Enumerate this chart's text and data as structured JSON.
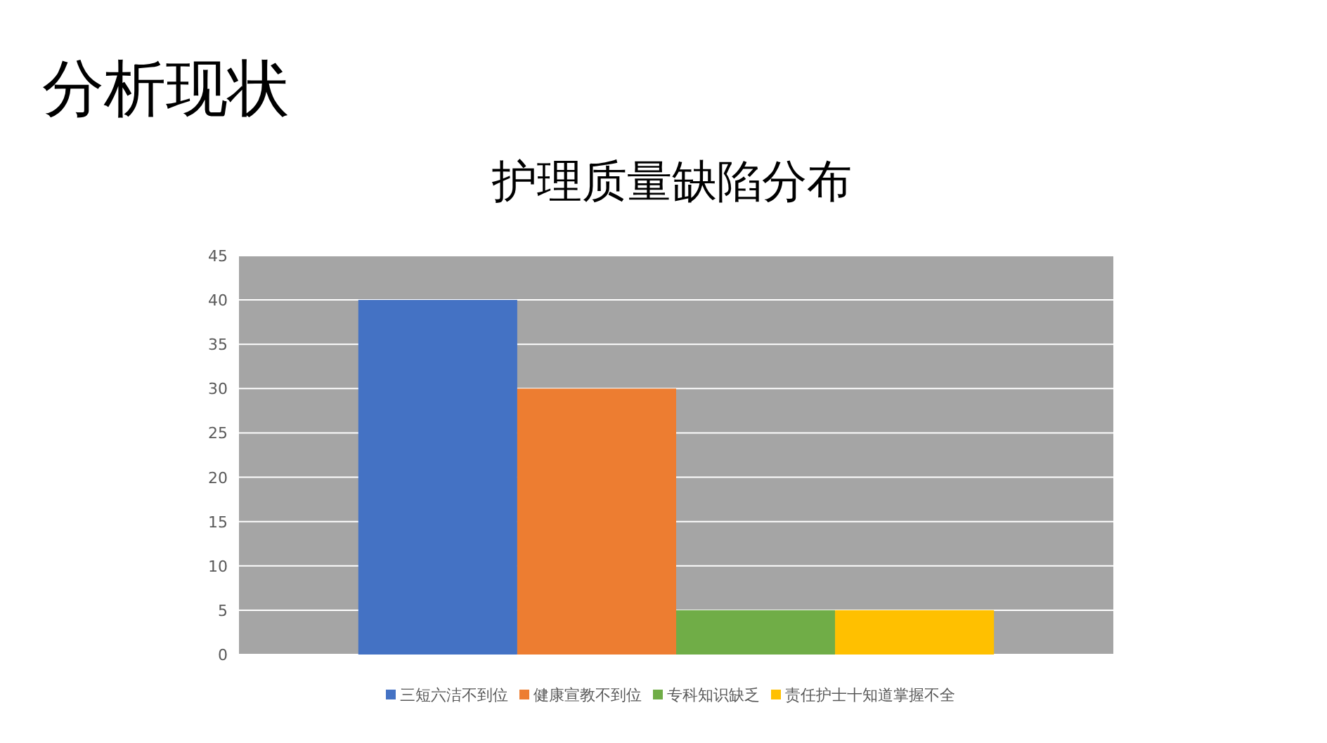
{
  "chart_data": {
    "type": "bar",
    "title": "分析现状",
    "subtitle": "护理质量缺陷分布",
    "categories": [
      null
    ],
    "series": [
      {
        "name": "三短六洁不到位",
        "color": "#4472c4",
        "values": [
          40
        ]
      },
      {
        "name": "健康宣教不到位",
        "color": "#ed7d31",
        "values": [
          30
        ]
      },
      {
        "name": "专科知识缺乏",
        "color": "#70ad47",
        "values": [
          5
        ]
      },
      {
        "name": "责任护士十知道掌握不全",
        "color": "#ffc000",
        "values": [
          5
        ]
      }
    ],
    "ylim": [
      0,
      45
    ],
    "yticks": [
      0,
      5,
      10,
      15,
      20,
      25,
      30,
      35,
      40,
      45
    ],
    "grid": "y",
    "legend": "bottom"
  }
}
